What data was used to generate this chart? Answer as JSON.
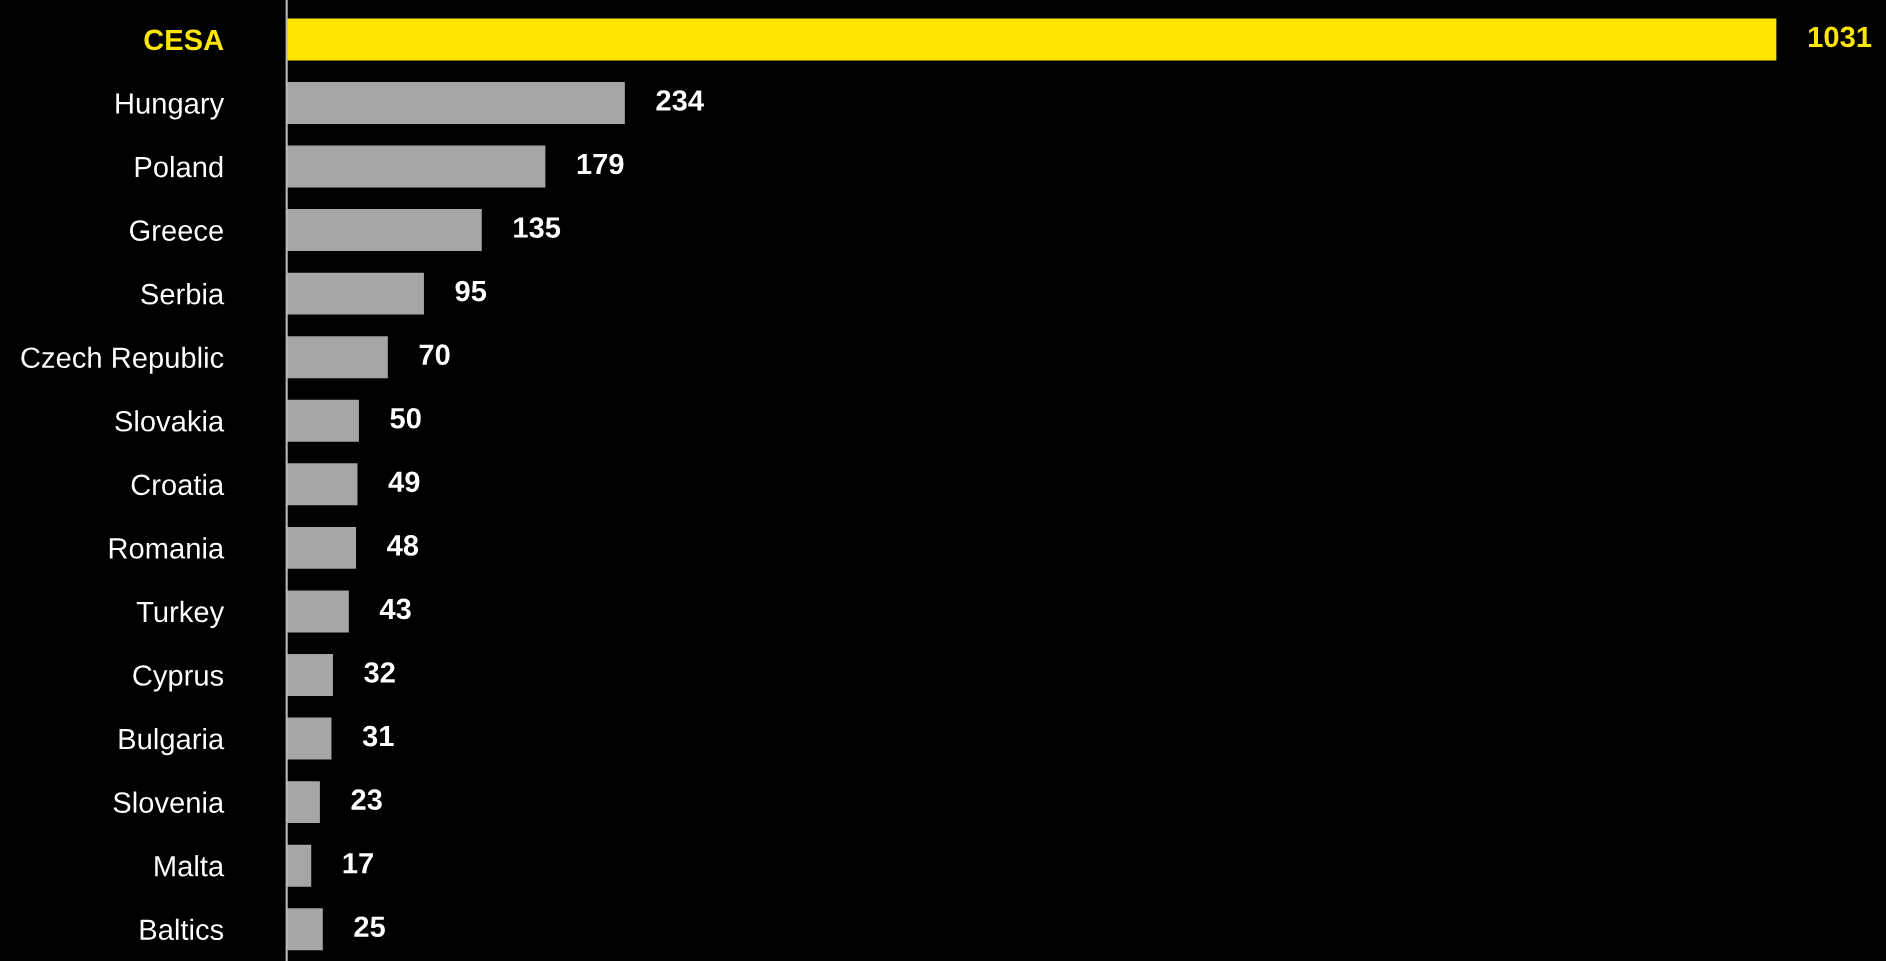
{
  "chart_data": {
    "type": "bar",
    "orientation": "horizontal",
    "data_labels": true,
    "categories": [
      "CESA",
      "Hungary",
      "Poland",
      "Greece",
      "Serbia",
      "Czech Republic",
      "Slovakia",
      "Croatia",
      "Romania",
      "Turkey",
      "Cyprus",
      "Bulgaria",
      "Slovenia",
      "Malta",
      "Baltics"
    ],
    "values": [
      1031,
      234,
      179,
      135,
      95,
      70,
      50,
      49,
      48,
      43,
      32,
      31,
      23,
      17,
      25
    ],
    "colors": [
      "#ffe600",
      "#a6a6a6",
      "#a6a6a6",
      "#a6a6a6",
      "#a6a6a6",
      "#a6a6a6",
      "#a6a6a6",
      "#a6a6a6",
      "#a6a6a6",
      "#a6a6a6",
      "#a6a6a6",
      "#a6a6a6",
      "#a6a6a6",
      "#a6a6a6",
      "#a6a6a6"
    ]
  }
}
